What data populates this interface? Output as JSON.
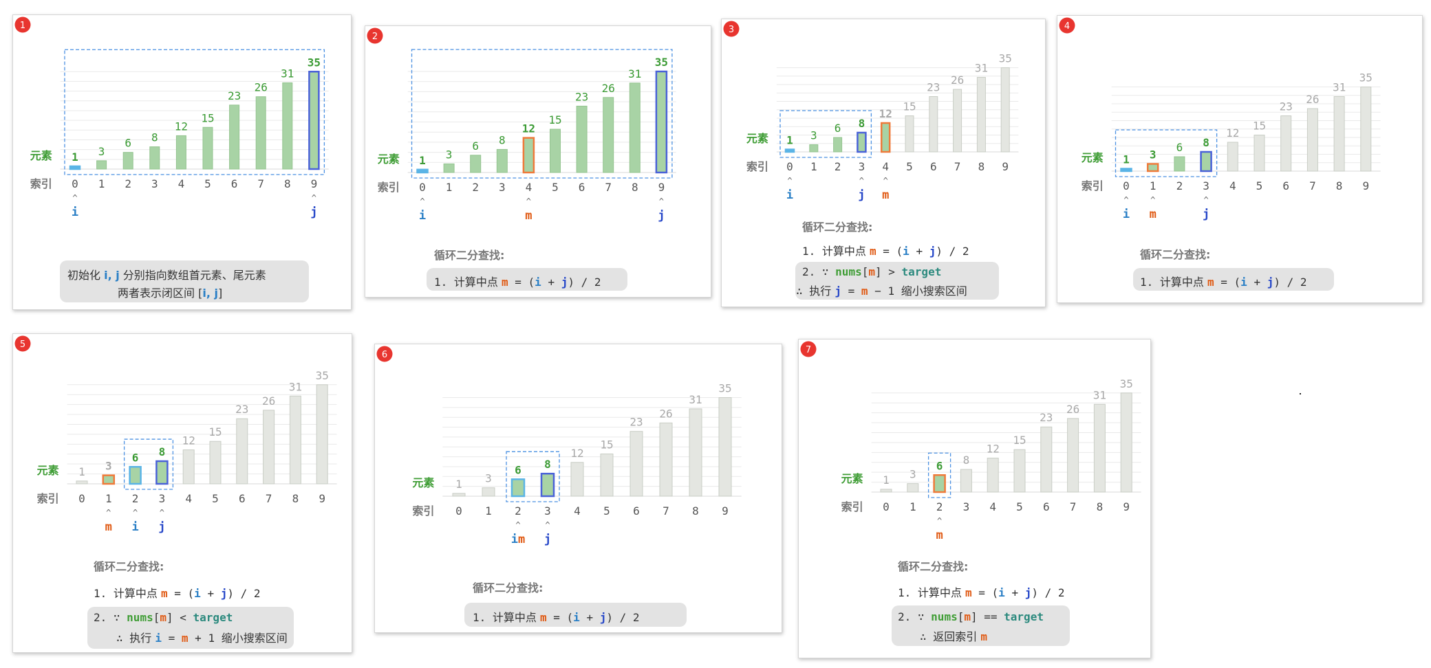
{
  "shared": {
    "y_label": "元素",
    "x_label": "索引",
    "colors": {
      "active_bar": "#a8d3a5",
      "inactive_bar": "#e4e6e1",
      "bar_i": "#5ab4e6",
      "bar_j": "#4a62d8",
      "bar_m": "#ef7a3a",
      "bracket": "#4a90e2"
    }
  },
  "chart_data": [
    {
      "type": "bar",
      "step_label": "1",
      "categories": [
        "0",
        "1",
        "2",
        "3",
        "4",
        "5",
        "6",
        "7",
        "8",
        "9"
      ],
      "values": [
        1,
        3,
        6,
        8,
        12,
        15,
        23,
        26,
        31,
        35
      ],
      "active_range": [
        0,
        9
      ],
      "i": 0,
      "j": 9,
      "m": null,
      "ptr_labels": [
        {
          "index": 0,
          "label": "i"
        },
        {
          "index": 9,
          "label": "j"
        }
      ],
      "title": "",
      "lines": []
    },
    {
      "type": "bar",
      "step_label": "2",
      "categories": [
        "0",
        "1",
        "2",
        "3",
        "4",
        "5",
        "6",
        "7",
        "8",
        "9"
      ],
      "values": [
        1,
        3,
        6,
        8,
        12,
        15,
        23,
        26,
        31,
        35
      ],
      "active_range": [
        0,
        9
      ],
      "i": 0,
      "j": 9,
      "m": 4,
      "ptr_labels": [
        {
          "index": 0,
          "label": "i"
        },
        {
          "index": 4,
          "label": "m"
        },
        {
          "index": 9,
          "label": "j"
        }
      ],
      "title": "循环二分查找:",
      "lines": []
    },
    {
      "type": "bar",
      "step_label": "3",
      "categories": [
        "0",
        "1",
        "2",
        "3",
        "4",
        "5",
        "6",
        "7",
        "8",
        "9"
      ],
      "values": [
        1,
        3,
        6,
        8,
        12,
        15,
        23,
        26,
        31,
        35
      ],
      "active_range": [
        0,
        3
      ],
      "i": 0,
      "j": 3,
      "m": 4,
      "ptr_labels": [
        {
          "index": 0,
          "label": "i"
        },
        {
          "index": 3,
          "label": "j"
        },
        {
          "index": 4,
          "label": "m"
        }
      ],
      "title": "循环二分查找:",
      "lines": []
    },
    {
      "type": "bar",
      "step_label": "4",
      "categories": [
        "0",
        "1",
        "2",
        "3",
        "4",
        "5",
        "6",
        "7",
        "8",
        "9"
      ],
      "values": [
        1,
        3,
        6,
        8,
        12,
        15,
        23,
        26,
        31,
        35
      ],
      "active_range": [
        0,
        3
      ],
      "i": 0,
      "j": 3,
      "m": 1,
      "ptr_labels": [
        {
          "index": 0,
          "label": "i"
        },
        {
          "index": 1,
          "label": "m"
        },
        {
          "index": 3,
          "label": "j"
        }
      ],
      "title": "循环二分查找:",
      "lines": []
    },
    {
      "type": "bar",
      "step_label": "5",
      "categories": [
        "0",
        "1",
        "2",
        "3",
        "4",
        "5",
        "6",
        "7",
        "8",
        "9"
      ],
      "values": [
        1,
        3,
        6,
        8,
        12,
        15,
        23,
        26,
        31,
        35
      ],
      "active_range": [
        2,
        3
      ],
      "i": 2,
      "j": 3,
      "m": 1,
      "ptr_labels": [
        {
          "index": 1,
          "label": "m"
        },
        {
          "index": 2,
          "label": "i"
        },
        {
          "index": 3,
          "label": "j"
        }
      ],
      "title": "循环二分查找:",
      "lines": []
    },
    {
      "type": "bar",
      "step_label": "6",
      "categories": [
        "0",
        "1",
        "2",
        "3",
        "4",
        "5",
        "6",
        "7",
        "8",
        "9"
      ],
      "values": [
        1,
        3,
        6,
        8,
        12,
        15,
        23,
        26,
        31,
        35
      ],
      "active_range": [
        2,
        3
      ],
      "i": 2,
      "j": 3,
      "m": 2,
      "ptr_labels": [
        {
          "index": 2,
          "label": "im"
        },
        {
          "index": 3,
          "label": "j"
        }
      ],
      "title": "循环二分查找:",
      "lines": []
    },
    {
      "type": "bar",
      "step_label": "7",
      "categories": [
        "0",
        "1",
        "2",
        "3",
        "4",
        "5",
        "6",
        "7",
        "8",
        "9"
      ],
      "values": [
        1,
        3,
        6,
        8,
        12,
        15,
        23,
        26,
        31,
        35
      ],
      "active_range": [
        2,
        2
      ],
      "i": null,
      "j": null,
      "m": 2,
      "ptr_labels": [
        {
          "index": 2,
          "label": "m"
        }
      ],
      "title": "循环二分查找:",
      "lines": []
    }
  ],
  "notes": {
    "p1": {
      "line1": [
        "初始化 ",
        "i, j",
        " 分别指向数组首元素、尾元素"
      ],
      "line2": [
        "两者表示闭区间 [",
        "i, j",
        "]"
      ]
    },
    "compute": {
      "num": "1. ",
      "cn": "计算中点 ",
      "m": "m",
      " eq": " = (",
      "i": "i",
      " plus": " + ",
      "j": "j",
      "tail": ") / 2"
    },
    "cmp_gt": {
      "num": "2. ",
      "because": "∵ ",
      "nums": "nums",
      "lb": "[",
      "m": "m",
      "rb": "]",
      "op": " > ",
      "target": "target"
    },
    "act_gt": {
      "therefore": "∴ ",
      "cn1": "执行 ",
      "j": "j",
      "eq": " = ",
      "m": "m",
      "expr": " − 1 ",
      "cn2": "缩小搜索区间"
    },
    "cmp_lt": {
      "num": "2. ",
      "because": "∵ ",
      "nums": "nums",
      "lb": "[",
      "m": "m",
      "rb": "]",
      "op": " < ",
      "target": "target"
    },
    "act_lt": {
      "therefore": "∴ ",
      "cn1": "执行 ",
      "i": "i",
      "eq": " = ",
      "m": "m",
      "expr": " + 1 ",
      "cn2": "缩小搜索区间"
    },
    "cmp_eq": {
      "num": "2. ",
      "because": "∵ ",
      "nums": "nums",
      "lb": "[",
      "m": "m",
      "rb": "]",
      "op": " == ",
      "target": "target"
    },
    "act_eq": {
      "therefore": "∴ ",
      "cn1": "返回索引 ",
      "m": "m"
    }
  }
}
